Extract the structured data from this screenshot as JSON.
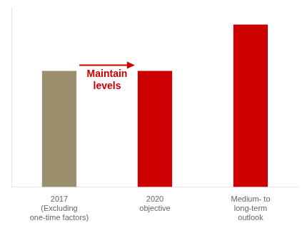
{
  "chart_data": {
    "type": "bar",
    "categories": [
      "2017\n(Excluding\none-time factors)",
      "2020\nobjective",
      "Medium- to\nlong-term\noutlook"
    ],
    "values": [
      1.0,
      1.0,
      1.4
    ],
    "colors": [
      "#9b8f6e",
      "#cc0000",
      "#cc0000"
    ],
    "ylim": [
      0,
      1.55
    ],
    "grid": false,
    "tick_labels": "x",
    "annotations": [
      {
        "text": "Maintain\nlevels",
        "color": "#cc0000"
      }
    ]
  }
}
